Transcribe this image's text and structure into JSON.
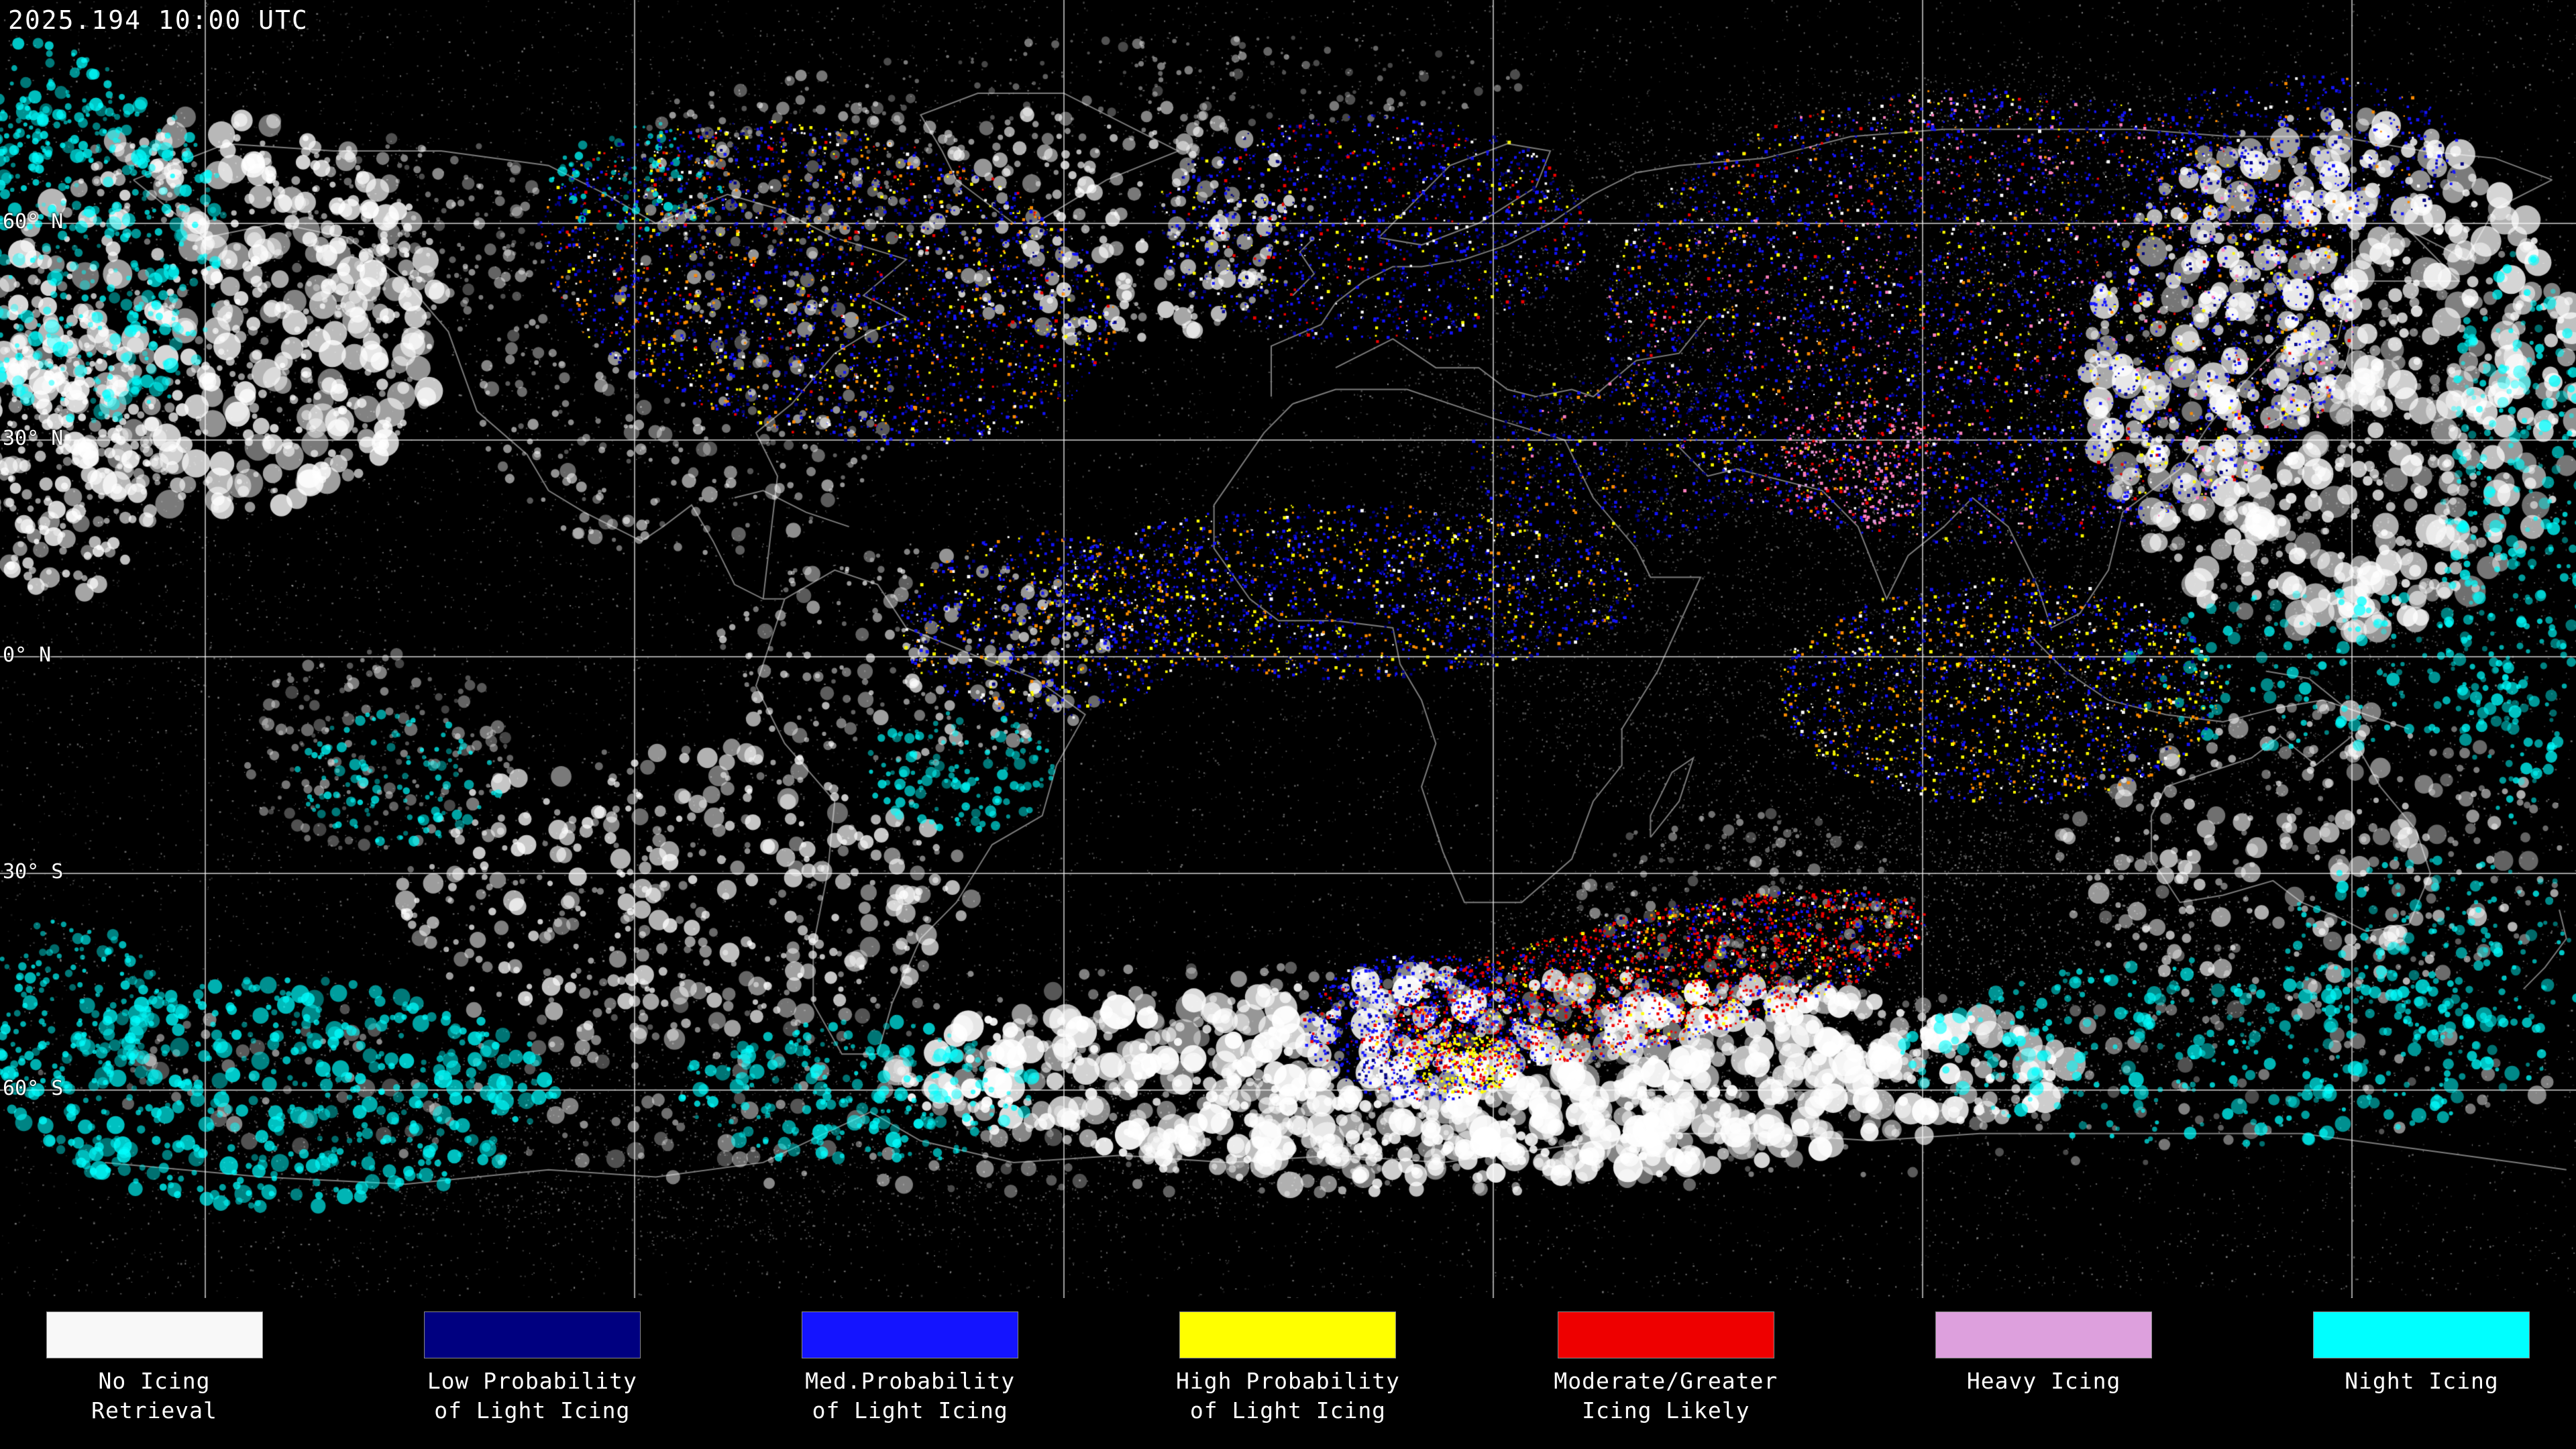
{
  "header": {
    "timestamp": "2025.194 10:00 UTC"
  },
  "map": {
    "lat_labels": [
      {
        "text": "60° N"
      },
      {
        "text": "30° N"
      },
      {
        "text": "0° N"
      },
      {
        "text": "30° S"
      },
      {
        "text": "60° S"
      }
    ]
  },
  "legend": {
    "items": [
      {
        "label_line1": "No Icing",
        "label_line2": "Retrieval",
        "color": "#f8f8f8"
      },
      {
        "label_line1": "Low Probability",
        "label_line2": "of Light Icing",
        "color": "#000080"
      },
      {
        "label_line1": "Med.Probability",
        "label_line2": "of Light Icing",
        "color": "#1414ff"
      },
      {
        "label_line1": "High Probability",
        "label_line2": "of Light Icing",
        "color": "#ffff00"
      },
      {
        "label_line1": "Moderate/Greater",
        "label_line2": "Icing Likely",
        "color": "#ee0000"
      },
      {
        "label_line1": "Heavy Icing",
        "label_line2": "",
        "color": "#dda0dd"
      },
      {
        "label_line1": "Night Icing",
        "label_line2": "",
        "color": "#00ffff"
      }
    ]
  },
  "palette": {
    "background": "#000000",
    "grid": "#cccccc",
    "coastline": "#8c8c8c",
    "cloud_white": "#ffffff",
    "orange": "#ff8c00",
    "pink": "#ff7fbf"
  }
}
